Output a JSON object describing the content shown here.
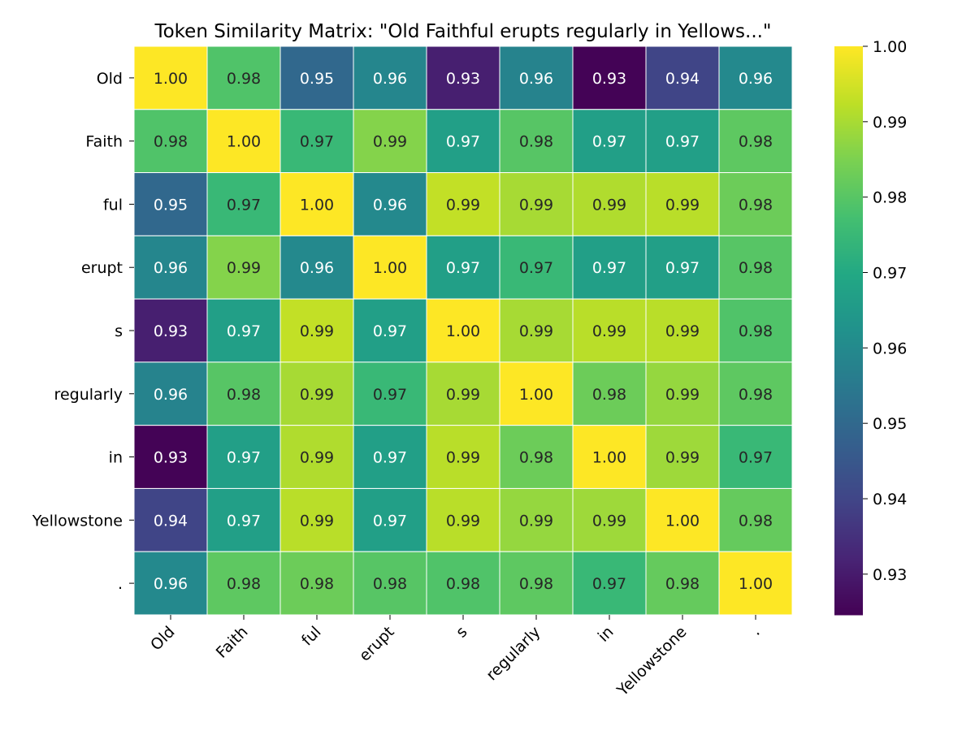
{
  "chart_data": {
    "type": "heatmap",
    "title": "Token Similarity Matrix: \"Old Faithful erupts regularly in Yellows...\"",
    "x_labels": [
      "Old",
      "Faith",
      "ful",
      "erupt",
      "s",
      "regularly",
      "in",
      "Yellowstone",
      "."
    ],
    "y_labels": [
      "Old",
      "Faith",
      "ful",
      "erupt",
      "s",
      "regularly",
      "in",
      "Yellowstone",
      "."
    ],
    "values": [
      [
        1.0,
        0.979,
        0.95,
        0.959,
        0.931,
        0.958,
        0.925,
        0.94,
        0.96
      ],
      [
        0.979,
        1.0,
        0.975,
        0.986,
        0.967,
        0.98,
        0.967,
        0.967,
        0.981
      ],
      [
        0.95,
        0.975,
        1.0,
        0.96,
        0.993,
        0.99,
        0.991,
        0.992,
        0.983
      ],
      [
        0.959,
        0.986,
        0.96,
        1.0,
        0.967,
        0.975,
        0.967,
        0.967,
        0.98
      ],
      [
        0.931,
        0.967,
        0.993,
        0.967,
        1.0,
        0.99,
        0.992,
        0.992,
        0.979
      ],
      [
        0.958,
        0.98,
        0.99,
        0.975,
        0.99,
        1.0,
        0.983,
        0.988,
        0.981
      ],
      [
        0.925,
        0.967,
        0.991,
        0.967,
        0.992,
        0.983,
        1.0,
        0.989,
        0.975
      ],
      [
        0.94,
        0.967,
        0.992,
        0.967,
        0.992,
        0.988,
        0.989,
        1.0,
        0.982
      ],
      [
        0.96,
        0.981,
        0.983,
        0.98,
        0.979,
        0.981,
        0.975,
        0.982,
        1.0
      ]
    ],
    "annotation_format": "2 decimals",
    "colormap": "viridis",
    "color_range": [
      0.9246,
      1.0
    ],
    "colorbar_ticks": [
      "0.93",
      "0.94",
      "0.95",
      "0.96",
      "0.97",
      "0.98",
      "0.99",
      "1.00"
    ],
    "colorbar_placement": "right",
    "grid": false,
    "xlabel": "",
    "ylabel": ""
  }
}
